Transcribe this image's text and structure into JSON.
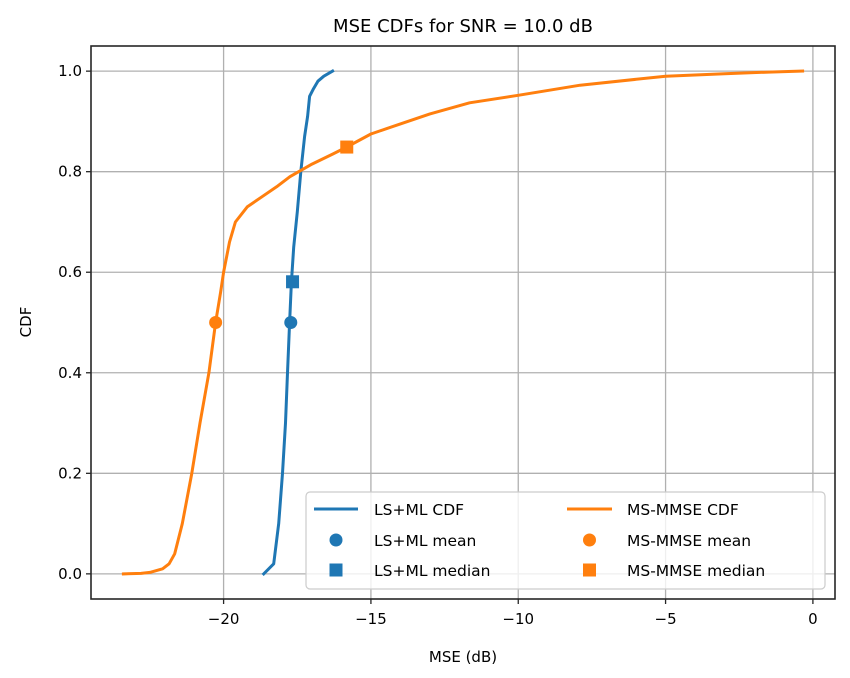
{
  "chart_data": {
    "type": "line",
    "title": "MSE CDFs for SNR = 10.0 dB",
    "xlabel": "MSE (dB)",
    "ylabel": "CDF",
    "xlim": [
      -24.5,
      0.75
    ],
    "ylim": [
      -0.05,
      1.05
    ],
    "xticks": [
      -20,
      -15,
      -10,
      -5,
      0
    ],
    "xtick_labels": [
      "−20",
      "−15",
      "−10",
      "−5",
      "0"
    ],
    "yticks": [
      0.0,
      0.2,
      0.4,
      0.6,
      0.8,
      1.0
    ],
    "ytick_labels": [
      "0.0",
      "0.2",
      "0.4",
      "0.6",
      "0.8",
      "1.0"
    ],
    "grid": true,
    "legend": {
      "placement": "lower-right",
      "columns": 2
    },
    "series": [
      {
        "name": "LS+ML CDF",
        "kind": "line",
        "color": "#1f77b4",
        "x": [
          -18.64,
          -18.3,
          -18.13,
          -18.0,
          -17.9,
          -17.83,
          -17.76,
          -17.7,
          -17.62,
          -17.5,
          -17.38,
          -17.25,
          -17.15,
          -17.08,
          -16.95,
          -16.8,
          -16.6,
          -16.3
        ],
        "y": [
          0.0,
          0.02,
          0.1,
          0.2,
          0.3,
          0.4,
          0.5,
          0.58,
          0.65,
          0.72,
          0.8,
          0.87,
          0.91,
          0.95,
          0.965,
          0.98,
          0.99,
          1.0
        ]
      },
      {
        "name": "MS-MMSE CDF",
        "kind": "line",
        "color": "#ff7f0e",
        "x": [
          -23.4,
          -22.8,
          -22.5,
          -22.07,
          -21.85,
          -21.66,
          -21.4,
          -21.08,
          -20.8,
          -20.5,
          -20.27,
          -20.1,
          -20.0,
          -19.8,
          -19.6,
          -19.2,
          -18.7,
          -18.2,
          -17.75,
          -17.0,
          -16.3,
          -15.82,
          -15.0,
          -14.0,
          -13.0,
          -11.65,
          -10.0,
          -7.9,
          -5.0,
          -3.0,
          -1.5,
          -0.35
        ],
        "y": [
          0.0,
          0.001,
          0.003,
          0.01,
          0.02,
          0.04,
          0.1,
          0.2,
          0.3,
          0.4,
          0.5,
          0.56,
          0.6,
          0.66,
          0.7,
          0.73,
          0.75,
          0.77,
          0.79,
          0.815,
          0.835,
          0.849,
          0.875,
          0.895,
          0.915,
          0.937,
          0.952,
          0.972,
          0.99,
          0.995,
          0.998,
          1.0
        ]
      },
      {
        "name": "LS+ML mean",
        "kind": "marker",
        "marker": "circle",
        "color": "#1f77b4",
        "x": [
          -17.72
        ],
        "y": [
          0.5
        ]
      },
      {
        "name": "LS+ML median",
        "kind": "marker",
        "marker": "square",
        "color": "#1f77b4",
        "x": [
          -17.66
        ],
        "y": [
          0.581
        ]
      },
      {
        "name": "MS-MMSE mean",
        "kind": "marker",
        "marker": "circle",
        "color": "#ff7f0e",
        "x": [
          -20.27
        ],
        "y": [
          0.5
        ]
      },
      {
        "name": "MS-MMSE median",
        "kind": "marker",
        "marker": "square",
        "color": "#ff7f0e",
        "x": [
          -15.82
        ],
        "y": [
          0.849
        ]
      }
    ],
    "legend_entries": [
      {
        "label": "LS+ML CDF",
        "kind": "line",
        "color": "#1f77b4"
      },
      {
        "label": "LS+ML mean",
        "kind": "circle",
        "color": "#1f77b4"
      },
      {
        "label": "LS+ML median",
        "kind": "square",
        "color": "#1f77b4"
      },
      {
        "label": "MS-MMSE CDF",
        "kind": "line",
        "color": "#ff7f0e"
      },
      {
        "label": "MS-MMSE mean",
        "kind": "circle",
        "color": "#ff7f0e"
      },
      {
        "label": "MS-MMSE median",
        "kind": "square",
        "color": "#ff7f0e"
      }
    ]
  }
}
